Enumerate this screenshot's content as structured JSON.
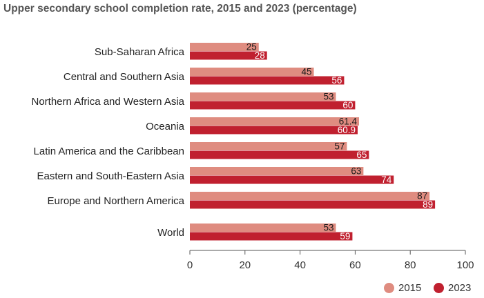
{
  "chart_data": {
    "type": "bar",
    "orientation": "horizontal",
    "title": "Upper secondary school completion rate, 2015 and 2023 (percentage)",
    "categories": [
      "Sub-Saharan Africa",
      "Central and Southern Asia",
      "Northern Africa and Western Asia",
      "Oceania",
      "Latin America and the Caribbean",
      "Eastern and South-Eastern Asia",
      "Europe and Northern America",
      "World"
    ],
    "series": [
      {
        "name": "2015",
        "color": "#df8c80",
        "values": [
          25,
          45,
          53,
          61.4,
          57,
          63,
          87,
          53
        ],
        "labels": [
          "25",
          "45",
          "53",
          "61.4",
          "57",
          "63",
          "87",
          "53"
        ]
      },
      {
        "name": "2023",
        "color": "#c0202f",
        "values": [
          28,
          56,
          60,
          60.9,
          65,
          74,
          89,
          59
        ],
        "labels": [
          "28",
          "56",
          "60",
          "60.9",
          "65",
          "74",
          "89",
          "59"
        ]
      }
    ],
    "xlim": [
      0,
      100
    ],
    "xticks": [
      "0",
      "20",
      "40",
      "60",
      "80",
      "100"
    ],
    "legend_position": "bottom-right",
    "grid": false
  }
}
